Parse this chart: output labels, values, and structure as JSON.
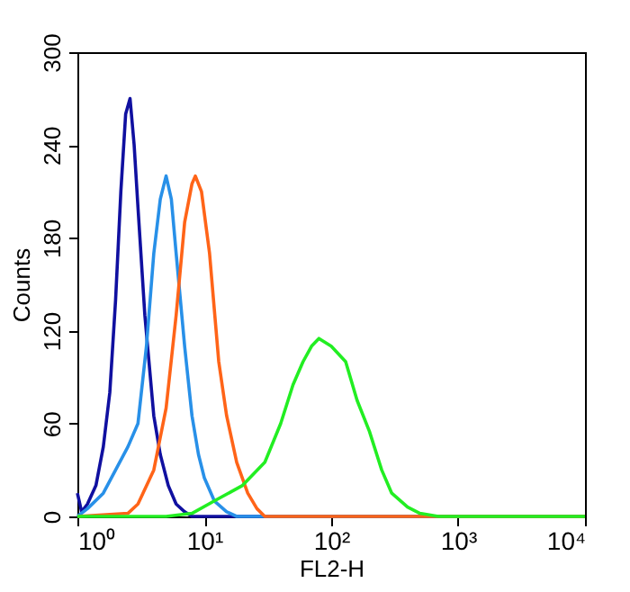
{
  "chart_data": {
    "type": "line",
    "xlabel": "FL2-H",
    "ylabel": "Counts",
    "log": "x",
    "grid": false,
    "marker": "none",
    "line_style": "solid",
    "xlim": [
      1,
      10000
    ],
    "xticks": [
      {
        "value": 1,
        "label": "10⁰"
      },
      {
        "value": 10,
        "label": "10¹"
      },
      {
        "value": 100,
        "label": "10²"
      },
      {
        "value": 1000,
        "label": "10³"
      },
      {
        "value": 10000,
        "label": "10⁴"
      }
    ],
    "ylim": [
      0,
      300
    ],
    "yticks": [
      0,
      60,
      120,
      180,
      240,
      300
    ],
    "series": [
      {
        "color": "#1010a0",
        "x": [
          1,
          1.08,
          1.2,
          1.4,
          1.6,
          1.8,
          2.0,
          2.2,
          2.4,
          2.6,
          2.8,
          3.0,
          3.4,
          4.0,
          4.5,
          5.2,
          6,
          7,
          8,
          20,
          10000
        ],
        "values": [
          15,
          3,
          8,
          20,
          45,
          80,
          140,
          210,
          260,
          270,
          240,
          200,
          130,
          65,
          40,
          20,
          8,
          3,
          0,
          0,
          0
        ]
      },
      {
        "color": "#2890e8",
        "x": [
          1,
          1.2,
          1.6,
          2,
          2.5,
          3,
          3.5,
          4,
          4.5,
          5,
          5.5,
          6,
          7,
          8,
          9,
          10,
          12,
          15,
          18,
          10000
        ],
        "values": [
          0,
          5,
          15,
          30,
          45,
          60,
          110,
          170,
          205,
          220,
          205,
          170,
          110,
          65,
          40,
          25,
          10,
          3,
          0,
          0
        ]
      },
      {
        "color": "#ff6418",
        "x": [
          1,
          2.5,
          3,
          4,
          5,
          6,
          7,
          8,
          8.5,
          9.5,
          11,
          13,
          15,
          18,
          22,
          26,
          30,
          10000
        ],
        "values": [
          0,
          2,
          8,
          30,
          70,
          130,
          190,
          215,
          220,
          210,
          170,
          100,
          65,
          35,
          15,
          5,
          0,
          0
        ]
      },
      {
        "color": "#22ee22",
        "x": [
          1,
          5,
          8,
          12,
          20,
          30,
          40,
          50,
          60,
          70,
          80,
          100,
          130,
          160,
          200,
          250,
          300,
          400,
          500,
          700,
          10000
        ],
        "values": [
          0,
          0,
          2,
          10,
          20,
          35,
          60,
          85,
          100,
          110,
          115,
          110,
          100,
          75,
          55,
          30,
          15,
          6,
          2,
          0,
          0
        ]
      }
    ]
  }
}
